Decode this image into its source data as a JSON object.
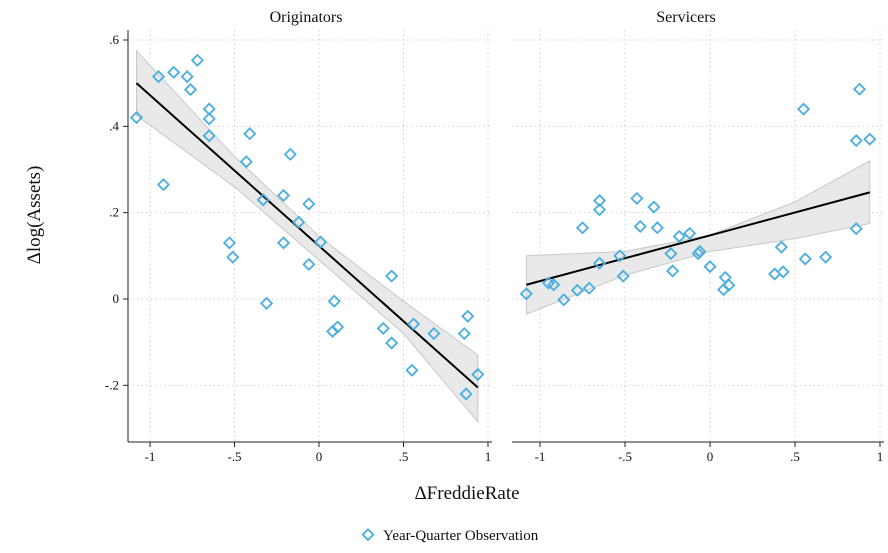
{
  "chart_data": {
    "type": "scatter",
    "ylabel": "Δlog(Assets)",
    "xlabel": "ΔFreddieRate",
    "legend": {
      "placement": "bottom",
      "entries": [
        "Year-Quarter Observation"
      ]
    },
    "colors": {
      "marker": "#48aee0",
      "fit": "#000000",
      "band": "#e9e9e9"
    },
    "grid": true,
    "xlim": [
      -1.1,
      1.0
    ],
    "ylim": [
      -0.3,
      0.61
    ],
    "x_ticks": [
      -1,
      -0.5,
      0,
      0.5,
      1
    ],
    "x_tick_labels": [
      "-1",
      "-.5",
      "0",
      ".5",
      "1"
    ],
    "y_ticks": [
      -0.2,
      0,
      0.2,
      0.4,
      0.6
    ],
    "y_tick_labels": [
      "-.2",
      "0",
      ".2",
      ".4",
      ".6"
    ],
    "panels": [
      {
        "title": "Originators",
        "fit": {
          "x": [
            -1.08,
            0.94
          ],
          "y": [
            0.5,
            -0.205
          ]
        },
        "band": {
          "x": [
            -1.08,
            -0.5,
            0.0,
            0.5,
            0.94
          ],
          "upper": [
            0.575,
            0.33,
            0.145,
            -0.005,
            -0.13
          ],
          "lower": [
            0.425,
            0.26,
            0.09,
            -0.08,
            -0.285
          ]
        },
        "points": [
          {
            "x": -1.08,
            "y": 0.42
          },
          {
            "x": -0.95,
            "y": 0.515
          },
          {
            "x": -0.92,
            "y": 0.265
          },
          {
            "x": -0.86,
            "y": 0.525
          },
          {
            "x": -0.78,
            "y": 0.515
          },
          {
            "x": -0.76,
            "y": 0.485
          },
          {
            "x": -0.72,
            "y": 0.553
          },
          {
            "x": -0.65,
            "y": 0.44
          },
          {
            "x": -0.65,
            "y": 0.417
          },
          {
            "x": -0.65,
            "y": 0.378
          },
          {
            "x": -0.53,
            "y": 0.13
          },
          {
            "x": -0.51,
            "y": 0.097
          },
          {
            "x": -0.43,
            "y": 0.318
          },
          {
            "x": -0.41,
            "y": 0.383
          },
          {
            "x": -0.33,
            "y": 0.23
          },
          {
            "x": -0.31,
            "y": -0.01
          },
          {
            "x": -0.21,
            "y": 0.24
          },
          {
            "x": -0.21,
            "y": 0.13
          },
          {
            "x": -0.17,
            "y": 0.335
          },
          {
            "x": -0.12,
            "y": 0.178
          },
          {
            "x": -0.06,
            "y": 0.22
          },
          {
            "x": -0.06,
            "y": 0.08
          },
          {
            "x": 0.01,
            "y": 0.132
          },
          {
            "x": 0.08,
            "y": -0.075
          },
          {
            "x": 0.09,
            "y": -0.005
          },
          {
            "x": 0.11,
            "y": -0.065
          },
          {
            "x": 0.38,
            "y": -0.068
          },
          {
            "x": 0.43,
            "y": 0.053
          },
          {
            "x": 0.43,
            "y": -0.102
          },
          {
            "x": 0.55,
            "y": -0.165
          },
          {
            "x": 0.56,
            "y": -0.058
          },
          {
            "x": 0.68,
            "y": -0.08
          },
          {
            "x": 0.86,
            "y": -0.08
          },
          {
            "x": 0.87,
            "y": -0.22
          },
          {
            "x": 0.88,
            "y": -0.04
          },
          {
            "x": 0.94,
            "y": -0.175
          }
        ]
      },
      {
        "title": "Servicers",
        "fit": {
          "x": [
            -1.08,
            0.94
          ],
          "y": [
            0.033,
            0.247
          ]
        },
        "band": {
          "x": [
            -1.08,
            -0.5,
            0.0,
            0.5,
            0.94
          ],
          "upper": [
            0.1,
            0.11,
            0.148,
            0.225,
            0.32
          ],
          "lower": [
            -0.035,
            0.055,
            0.11,
            0.14,
            0.175
          ]
        },
        "points": [
          {
            "x": -1.08,
            "y": 0.012
          },
          {
            "x": -0.95,
            "y": 0.037
          },
          {
            "x": -0.92,
            "y": 0.033
          },
          {
            "x": -0.86,
            "y": -0.002
          },
          {
            "x": -0.78,
            "y": 0.02
          },
          {
            "x": -0.75,
            "y": 0.165
          },
          {
            "x": -0.71,
            "y": 0.025
          },
          {
            "x": -0.65,
            "y": 0.228
          },
          {
            "x": -0.65,
            "y": 0.207
          },
          {
            "x": -0.65,
            "y": 0.083
          },
          {
            "x": -0.53,
            "y": 0.1
          },
          {
            "x": -0.51,
            "y": 0.053
          },
          {
            "x": -0.43,
            "y": 0.233
          },
          {
            "x": -0.41,
            "y": 0.168
          },
          {
            "x": -0.33,
            "y": 0.213
          },
          {
            "x": -0.31,
            "y": 0.165
          },
          {
            "x": -0.23,
            "y": 0.105
          },
          {
            "x": -0.22,
            "y": 0.065
          },
          {
            "x": -0.18,
            "y": 0.145
          },
          {
            "x": -0.12,
            "y": 0.152
          },
          {
            "x": -0.07,
            "y": 0.105
          },
          {
            "x": -0.06,
            "y": 0.11
          },
          {
            "x": 0.0,
            "y": 0.075
          },
          {
            "x": 0.08,
            "y": 0.022
          },
          {
            "x": 0.09,
            "y": 0.05
          },
          {
            "x": 0.11,
            "y": 0.032
          },
          {
            "x": 0.38,
            "y": 0.058
          },
          {
            "x": 0.42,
            "y": 0.12
          },
          {
            "x": 0.43,
            "y": 0.063
          },
          {
            "x": 0.55,
            "y": 0.44
          },
          {
            "x": 0.56,
            "y": 0.093
          },
          {
            "x": 0.68,
            "y": 0.097
          },
          {
            "x": 0.86,
            "y": 0.163
          },
          {
            "x": 0.86,
            "y": 0.367
          },
          {
            "x": 0.88,
            "y": 0.486
          },
          {
            "x": 0.94,
            "y": 0.37
          }
        ]
      }
    ]
  }
}
